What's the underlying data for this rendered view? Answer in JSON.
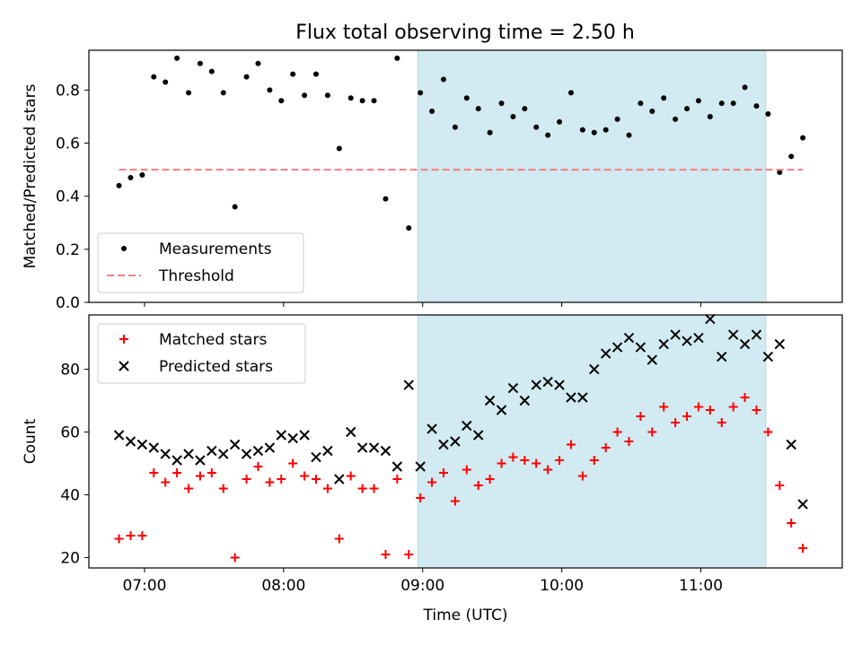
{
  "title": "Flux total observing time = 2.50 h",
  "shade_color": "#add8e6",
  "chart_data": [
    {
      "type": "scatter",
      "ylabel": "Matched/Predicted stars",
      "ylim": [
        0,
        0.95
      ],
      "yticks": [
        0.0,
        0.2,
        0.4,
        0.6,
        0.8
      ],
      "ytick_labels": [
        "0.0",
        "0.2",
        "0.4",
        "0.6",
        "0.8"
      ],
      "xlim": [
        "06:36",
        "12:01"
      ],
      "xticks": [
        "07:00",
        "08:00",
        "09:00",
        "10:00",
        "11:00"
      ],
      "grid": false,
      "legend_position": "lower-left",
      "shaded_interval": [
        "08:58",
        "11:28"
      ],
      "series": [
        {
          "name": "Measurements",
          "color": "#000000",
          "marker": "dot",
          "points": [
            [
              "06:49",
              0.44
            ],
            [
              "06:54",
              0.47
            ],
            [
              "06:59",
              0.48
            ],
            [
              "07:04",
              0.85
            ],
            [
              "07:09",
              0.83
            ],
            [
              "07:14",
              0.92
            ],
            [
              "07:19",
              0.79
            ],
            [
              "07:24",
              0.9
            ],
            [
              "07:29",
              0.87
            ],
            [
              "07:34",
              0.79
            ],
            [
              "07:39",
              0.36
            ],
            [
              "07:44",
              0.85
            ],
            [
              "07:49",
              0.9
            ],
            [
              "07:54",
              0.8
            ],
            [
              "07:59",
              0.76
            ],
            [
              "08:04",
              0.86
            ],
            [
              "08:09",
              0.78
            ],
            [
              "08:14",
              0.86
            ],
            [
              "08:19",
              0.78
            ],
            [
              "08:24",
              0.58
            ],
            [
              "08:29",
              0.77
            ],
            [
              "08:34",
              0.76
            ],
            [
              "08:39",
              0.76
            ],
            [
              "08:44",
              0.39
            ],
            [
              "08:49",
              0.92
            ],
            [
              "08:54",
              0.28
            ],
            [
              "08:59",
              0.79
            ],
            [
              "09:04",
              0.72
            ],
            [
              "09:09",
              0.84
            ],
            [
              "09:14",
              0.66
            ],
            [
              "09:19",
              0.77
            ],
            [
              "09:24",
              0.73
            ],
            [
              "09:29",
              0.64
            ],
            [
              "09:34",
              0.75
            ],
            [
              "09:39",
              0.7
            ],
            [
              "09:44",
              0.73
            ],
            [
              "09:49",
              0.66
            ],
            [
              "09:54",
              0.63
            ],
            [
              "09:59",
              0.68
            ],
            [
              "10:04",
              0.79
            ],
            [
              "10:09",
              0.65
            ],
            [
              "10:14",
              0.64
            ],
            [
              "10:19",
              0.65
            ],
            [
              "10:24",
              0.69
            ],
            [
              "10:29",
              0.63
            ],
            [
              "10:34",
              0.75
            ],
            [
              "10:39",
              0.72
            ],
            [
              "10:44",
              0.77
            ],
            [
              "10:49",
              0.69
            ],
            [
              "10:54",
              0.73
            ],
            [
              "10:59",
              0.76
            ],
            [
              "11:04",
              0.7
            ],
            [
              "11:09",
              0.75
            ],
            [
              "11:14",
              0.75
            ],
            [
              "11:19",
              0.81
            ],
            [
              "11:24",
              0.74
            ],
            [
              "11:29",
              0.71
            ],
            [
              "11:34",
              0.49
            ],
            [
              "11:39",
              0.55
            ],
            [
              "11:44",
              0.62
            ]
          ]
        },
        {
          "name": "Threshold",
          "color": "#f08080",
          "style": "dashed",
          "points": [
            [
              "06:49",
              0.5
            ],
            [
              "11:44",
              0.5
            ]
          ]
        }
      ]
    },
    {
      "type": "scatter",
      "xlabel": "Time (UTC)",
      "ylabel": "Count",
      "ylim": [
        16.7,
        97.3
      ],
      "yticks": [
        20,
        40,
        60,
        80
      ],
      "ytick_labels": [
        "20",
        "40",
        "60",
        "80"
      ],
      "xlim": [
        "06:36",
        "12:01"
      ],
      "xticks": [
        "07:00",
        "08:00",
        "09:00",
        "10:00",
        "11:00"
      ],
      "xtick_labels": [
        "07:00",
        "08:00",
        "09:00",
        "10:00",
        "11:00"
      ],
      "grid": false,
      "legend_position": "upper-left",
      "shaded_interval": [
        "08:58",
        "11:28"
      ],
      "series": [
        {
          "name": "Matched stars",
          "color": "#ff0000",
          "marker": "plus",
          "points": [
            [
              "06:49",
              26
            ],
            [
              "06:54",
              27
            ],
            [
              "06:59",
              27
            ],
            [
              "07:04",
              47
            ],
            [
              "07:09",
              44
            ],
            [
              "07:14",
              47
            ],
            [
              "07:19",
              42
            ],
            [
              "07:24",
              46
            ],
            [
              "07:29",
              47
            ],
            [
              "07:34",
              42
            ],
            [
              "07:39",
              20
            ],
            [
              "07:44",
              45
            ],
            [
              "07:49",
              49
            ],
            [
              "07:54",
              44
            ],
            [
              "07:59",
              45
            ],
            [
              "08:04",
              50
            ],
            [
              "08:09",
              46
            ],
            [
              "08:14",
              45
            ],
            [
              "08:19",
              42
            ],
            [
              "08:24",
              26
            ],
            [
              "08:29",
              46
            ],
            [
              "08:34",
              42
            ],
            [
              "08:39",
              42
            ],
            [
              "08:44",
              21
            ],
            [
              "08:49",
              45
            ],
            [
              "08:54",
              21
            ],
            [
              "08:59",
              39
            ],
            [
              "09:04",
              44
            ],
            [
              "09:09",
              47
            ],
            [
              "09:14",
              38
            ],
            [
              "09:19",
              48
            ],
            [
              "09:24",
              43
            ],
            [
              "09:29",
              45
            ],
            [
              "09:34",
              50
            ],
            [
              "09:39",
              52
            ],
            [
              "09:44",
              51
            ],
            [
              "09:49",
              50
            ],
            [
              "09:54",
              48
            ],
            [
              "09:59",
              51
            ],
            [
              "10:04",
              56
            ],
            [
              "10:09",
              46
            ],
            [
              "10:14",
              51
            ],
            [
              "10:19",
              55
            ],
            [
              "10:24",
              60
            ],
            [
              "10:29",
              57
            ],
            [
              "10:34",
              65
            ],
            [
              "10:39",
              60
            ],
            [
              "10:44",
              68
            ],
            [
              "10:49",
              63
            ],
            [
              "10:54",
              65
            ],
            [
              "10:59",
              68
            ],
            [
              "11:04",
              67
            ],
            [
              "11:09",
              63
            ],
            [
              "11:14",
              68
            ],
            [
              "11:19",
              71
            ],
            [
              "11:24",
              67
            ],
            [
              "11:29",
              60
            ],
            [
              "11:34",
              43
            ],
            [
              "11:39",
              31
            ],
            [
              "11:44",
              23
            ]
          ]
        },
        {
          "name": "Predicted stars",
          "color": "#000000",
          "marker": "x",
          "points": [
            [
              "06:49",
              59
            ],
            [
              "06:54",
              57
            ],
            [
              "06:59",
              56
            ],
            [
              "07:04",
              55
            ],
            [
              "07:09",
              53
            ],
            [
              "07:14",
              51
            ],
            [
              "07:19",
              53
            ],
            [
              "07:24",
              51
            ],
            [
              "07:29",
              54
            ],
            [
              "07:34",
              53
            ],
            [
              "07:39",
              56
            ],
            [
              "07:44",
              53
            ],
            [
              "07:49",
              54
            ],
            [
              "07:54",
              55
            ],
            [
              "07:59",
              59
            ],
            [
              "08:04",
              58
            ],
            [
              "08:09",
              59
            ],
            [
              "08:14",
              52
            ],
            [
              "08:19",
              54
            ],
            [
              "08:24",
              45
            ],
            [
              "08:29",
              60
            ],
            [
              "08:34",
              55
            ],
            [
              "08:39",
              55
            ],
            [
              "08:44",
              54
            ],
            [
              "08:49",
              49
            ],
            [
              "08:54",
              75
            ],
            [
              "08:59",
              49
            ],
            [
              "09:04",
              61
            ],
            [
              "09:09",
              56
            ],
            [
              "09:14",
              57
            ],
            [
              "09:19",
              62
            ],
            [
              "09:24",
              59
            ],
            [
              "09:29",
              70
            ],
            [
              "09:34",
              67
            ],
            [
              "09:39",
              74
            ],
            [
              "09:44",
              70
            ],
            [
              "09:49",
              75
            ],
            [
              "09:54",
              76
            ],
            [
              "09:59",
              75
            ],
            [
              "10:04",
              71
            ],
            [
              "10:09",
              71
            ],
            [
              "10:14",
              80
            ],
            [
              "10:19",
              85
            ],
            [
              "10:24",
              87
            ],
            [
              "10:29",
              90
            ],
            [
              "10:34",
              87
            ],
            [
              "10:39",
              83
            ],
            [
              "10:44",
              88
            ],
            [
              "10:49",
              91
            ],
            [
              "10:54",
              89
            ],
            [
              "10:59",
              90
            ],
            [
              "11:04",
              96
            ],
            [
              "11:09",
              84
            ],
            [
              "11:14",
              91
            ],
            [
              "11:19",
              88
            ],
            [
              "11:24",
              91
            ],
            [
              "11:29",
              84
            ],
            [
              "11:34",
              88
            ],
            [
              "11:39",
              56
            ],
            [
              "11:44",
              37
            ]
          ]
        }
      ]
    }
  ]
}
